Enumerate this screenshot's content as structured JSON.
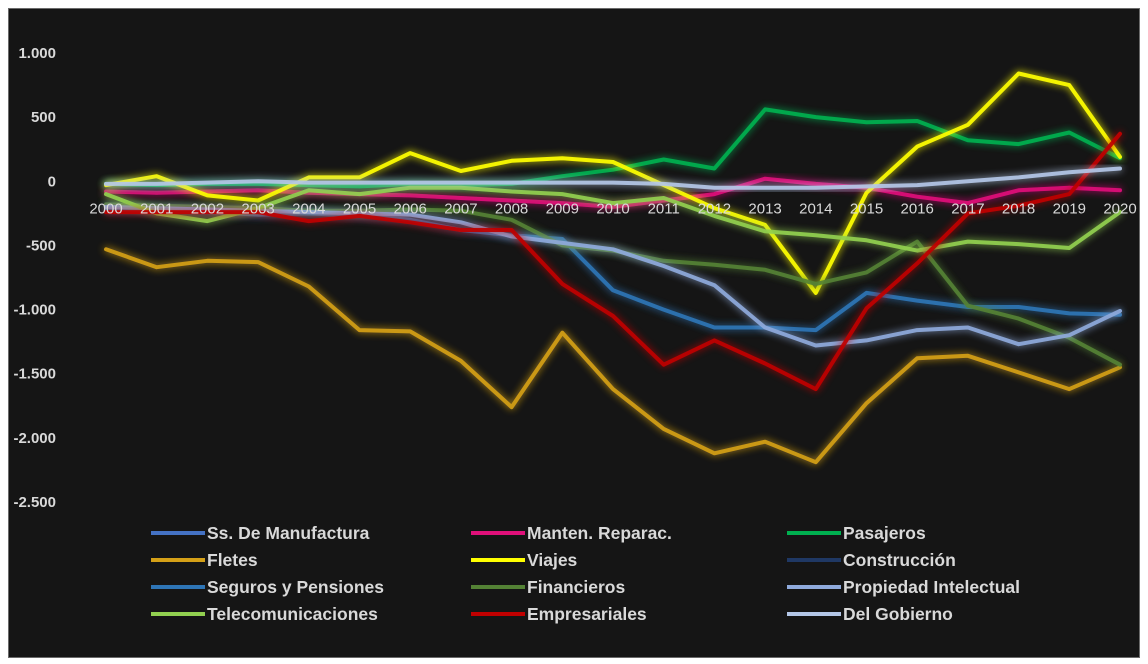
{
  "chart_data": {
    "type": "line",
    "title": "",
    "xlabel": "",
    "ylabel": "",
    "ylim": [
      -2500,
      1000
    ],
    "y_ticks": [
      1000,
      500,
      0,
      -500,
      -1000,
      -1500,
      -2000,
      -2500
    ],
    "y_tick_labels": [
      "1.000",
      "500",
      "0",
      "-500",
      "-1.000",
      "-1.500",
      "-2.000",
      "-2.500"
    ],
    "grid": false,
    "legend_position": "bottom",
    "x": [
      "2000",
      "2001",
      "2002",
      "2003",
      "2004",
      "2005",
      "2006",
      "2007",
      "2008",
      "2009",
      "2010",
      "2011",
      "2012",
      "2013",
      "2014",
      "2015",
      "2016",
      "2017",
      "2018",
      "2019",
      "2020"
    ],
    "series": [
      {
        "name": "Ss. De Manufactura",
        "color": "#4472c4",
        "values": [
          -10,
          -10,
          -10,
          -10,
          -10,
          -10,
          -10,
          -10,
          -10,
          -10,
          -10,
          -10,
          -10,
          -10,
          -10,
          -10,
          -10,
          -10,
          -10,
          -10,
          -10
        ]
      },
      {
        "name": "Manten. Reparac.",
        "color": "#e0107a",
        "values": [
          -80,
          -90,
          -80,
          -70,
          -90,
          -100,
          -110,
          -130,
          -150,
          -170,
          -200,
          -150,
          -100,
          20,
          -20,
          -50,
          -120,
          -170,
          -70,
          -50,
          -70
        ]
      },
      {
        "name": "Pasajeros",
        "color": "#00b050",
        "values": [
          -20,
          -30,
          -20,
          -20,
          -30,
          -40,
          -20,
          -30,
          -20,
          40,
          90,
          170,
          100,
          560,
          500,
          460,
          470,
          320,
          290,
          380,
          180
        ]
      },
      {
        "name": "Fletes",
        "color": "#d4a017",
        "values": [
          -530,
          -670,
          -620,
          -630,
          -820,
          -1160,
          -1170,
          -1400,
          -1760,
          -1180,
          -1620,
          -1930,
          -2120,
          -2030,
          -2190,
          -1730,
          -1380,
          -1360,
          -1490,
          -1620,
          -1450
        ]
      },
      {
        "name": "Viajes",
        "color": "#ffff00",
        "values": [
          -30,
          40,
          -110,
          -150,
          30,
          30,
          220,
          80,
          160,
          180,
          150,
          -30,
          -210,
          -340,
          -870,
          -90,
          270,
          440,
          840,
          750,
          190
        ]
      },
      {
        "name": "Construcción",
        "color": "#1f3864",
        "values": [
          0,
          0,
          0,
          0,
          0,
          0,
          0,
          0,
          0,
          0,
          0,
          0,
          0,
          0,
          0,
          0,
          0,
          0,
          0,
          0,
          0
        ]
      },
      {
        "name": "Seguros y Pensiones",
        "color": "#2e75b6",
        "values": [
          -220,
          -230,
          -240,
          -260,
          -250,
          -270,
          -300,
          -380,
          -420,
          -450,
          -850,
          -1000,
          -1140,
          -1140,
          -1160,
          -870,
          -930,
          -980,
          -980,
          -1030,
          -1040
        ]
      },
      {
        "name": "Financieros",
        "color": "#548235",
        "values": [
          -180,
          -190,
          -200,
          -210,
          -230,
          -230,
          -220,
          -230,
          -300,
          -500,
          -540,
          -620,
          -650,
          -690,
          -800,
          -710,
          -470,
          -970,
          -1070,
          -1220,
          -1430
        ]
      },
      {
        "name": "Propiedad Intelectual",
        "color": "#8faadc",
        "values": [
          -200,
          -210,
          -220,
          -230,
          -240,
          -250,
          -260,
          -320,
          -430,
          -480,
          -530,
          -660,
          -810,
          -1140,
          -1280,
          -1240,
          -1160,
          -1140,
          -1270,
          -1200,
          -1010
        ]
      },
      {
        "name": "Telecomunicaciones",
        "color": "#92d050",
        "values": [
          -100,
          -250,
          -310,
          -210,
          -70,
          -100,
          -50,
          -50,
          -80,
          -100,
          -170,
          -130,
          -270,
          -390,
          -420,
          -460,
          -540,
          -470,
          -490,
          -520,
          -240
        ]
      },
      {
        "name": "Empresariales",
        "color": "#c00000",
        "values": [
          -240,
          -240,
          -240,
          -240,
          -310,
          -270,
          -320,
          -380,
          -380,
          -800,
          -1050,
          -1430,
          -1240,
          -1420,
          -1620,
          -990,
          -640,
          -250,
          -190,
          -100,
          370
        ]
      },
      {
        "name": "Del Gobierno",
        "color": "#b4c7e7",
        "values": [
          -20,
          -20,
          -10,
          0,
          -10,
          -10,
          -10,
          -10,
          -10,
          -10,
          -10,
          -20,
          -50,
          -50,
          -50,
          -40,
          -30,
          0,
          30,
          70,
          100
        ]
      }
    ]
  }
}
